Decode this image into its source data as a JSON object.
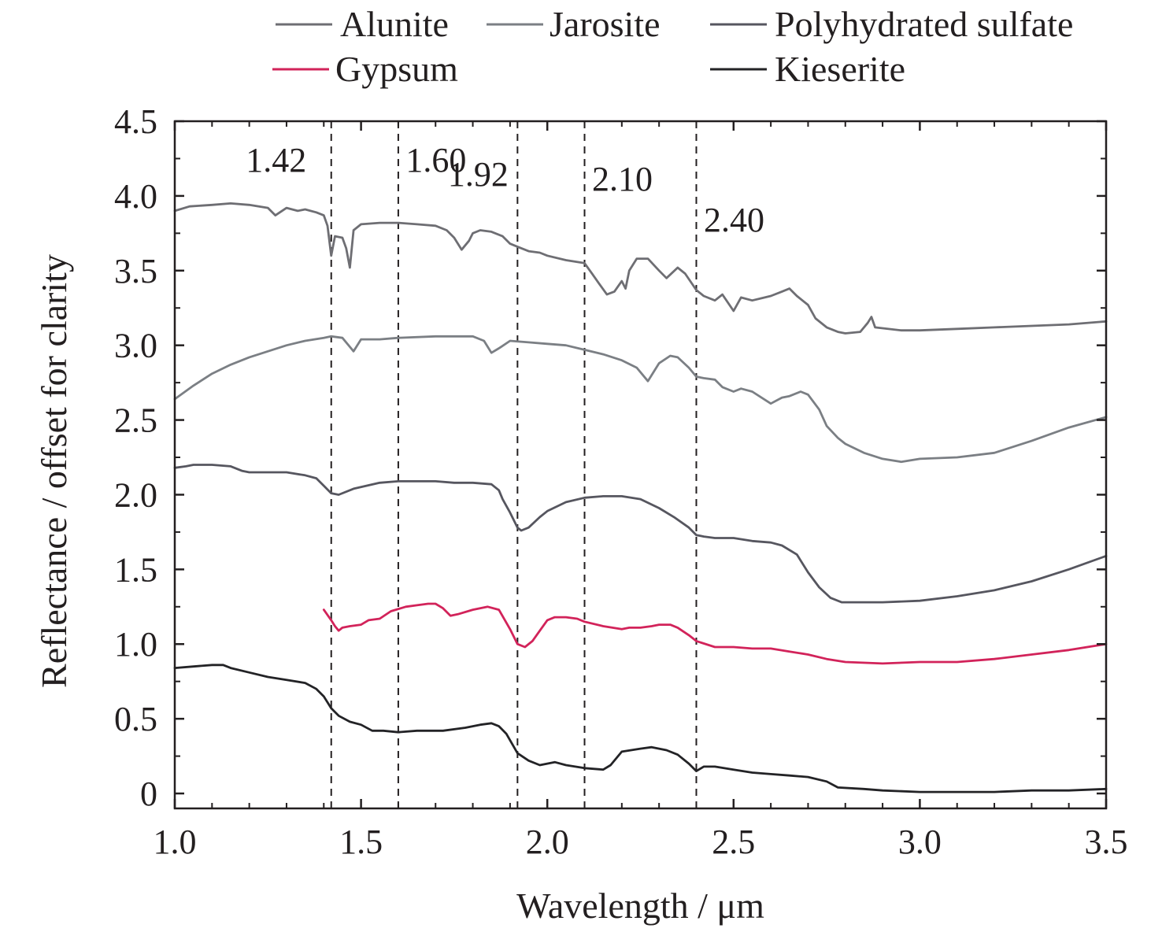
{
  "chart_data": {
    "type": "line",
    "title": "",
    "xlabel": "Wavelength / μm",
    "ylabel": "Reflectance / offset for clarity",
    "xlim": [
      1.0,
      3.5
    ],
    "ylim": [
      -0.1,
      4.5
    ],
    "xticks": [
      1.0,
      1.5,
      2.0,
      2.5,
      3.0,
      3.5
    ],
    "xtick_labels": [
      "1.0",
      "1.5",
      "2.0",
      "2.5",
      "3.0",
      "3.5"
    ],
    "yticks": [
      0,
      0.5,
      1.0,
      1.5,
      2.0,
      2.5,
      3.0,
      3.5,
      4.0,
      4.5
    ],
    "ytick_labels": [
      "0",
      "0.5",
      "1.0",
      "1.5",
      "2.0",
      "2.5",
      "3.0",
      "3.5",
      "4.0",
      "4.5"
    ],
    "grid": false,
    "legend_position": "top",
    "reference_lines": [
      {
        "x": 1.42,
        "label": "1.42"
      },
      {
        "x": 1.6,
        "label": "1.60"
      },
      {
        "x": 1.92,
        "label": "1.92"
      },
      {
        "x": 2.1,
        "label": "2.10"
      },
      {
        "x": 2.4,
        "label": "2.40"
      }
    ],
    "series": [
      {
        "name": "Alunite",
        "color": "#6e6e73",
        "x": [
          1.0,
          1.04,
          1.1,
          1.15,
          1.2,
          1.25,
          1.27,
          1.3,
          1.33,
          1.35,
          1.38,
          1.4,
          1.41,
          1.42,
          1.43,
          1.45,
          1.46,
          1.47,
          1.48,
          1.5,
          1.55,
          1.6,
          1.65,
          1.7,
          1.73,
          1.75,
          1.77,
          1.79,
          1.8,
          1.82,
          1.85,
          1.88,
          1.9,
          1.92,
          1.95,
          1.98,
          2.0,
          2.05,
          2.1,
          2.12,
          2.14,
          2.16,
          2.18,
          2.2,
          2.21,
          2.22,
          2.24,
          2.27,
          2.3,
          2.32,
          2.35,
          2.37,
          2.4,
          2.42,
          2.45,
          2.47,
          2.5,
          2.52,
          2.55,
          2.6,
          2.63,
          2.65,
          2.67,
          2.7,
          2.72,
          2.75,
          2.78,
          2.8,
          2.84,
          2.86,
          2.87,
          2.88,
          2.95,
          3.0,
          3.1,
          3.2,
          3.3,
          3.4,
          3.5
        ],
        "y": [
          3.9,
          3.93,
          3.94,
          3.95,
          3.94,
          3.92,
          3.87,
          3.92,
          3.9,
          3.91,
          3.89,
          3.87,
          3.8,
          3.6,
          3.73,
          3.72,
          3.65,
          3.52,
          3.77,
          3.81,
          3.82,
          3.82,
          3.81,
          3.8,
          3.77,
          3.72,
          3.64,
          3.7,
          3.75,
          3.77,
          3.76,
          3.73,
          3.68,
          3.66,
          3.63,
          3.62,
          3.6,
          3.57,
          3.55,
          3.48,
          3.41,
          3.34,
          3.36,
          3.43,
          3.38,
          3.5,
          3.58,
          3.58,
          3.5,
          3.45,
          3.52,
          3.48,
          3.37,
          3.33,
          3.3,
          3.34,
          3.23,
          3.32,
          3.3,
          3.33,
          3.36,
          3.38,
          3.33,
          3.27,
          3.18,
          3.12,
          3.09,
          3.08,
          3.09,
          3.15,
          3.19,
          3.12,
          3.1,
          3.1,
          3.11,
          3.12,
          3.13,
          3.14,
          3.16
        ]
      },
      {
        "name": "Jarosite",
        "color": "#7b7f84",
        "x": [
          1.0,
          1.05,
          1.1,
          1.15,
          1.2,
          1.25,
          1.3,
          1.35,
          1.4,
          1.42,
          1.45,
          1.47,
          1.48,
          1.5,
          1.55,
          1.6,
          1.7,
          1.8,
          1.83,
          1.85,
          1.87,
          1.9,
          1.95,
          2.0,
          2.05,
          2.1,
          2.15,
          2.2,
          2.24,
          2.27,
          2.28,
          2.3,
          2.33,
          2.35,
          2.38,
          2.4,
          2.42,
          2.45,
          2.47,
          2.5,
          2.52,
          2.55,
          2.6,
          2.63,
          2.65,
          2.68,
          2.7,
          2.73,
          2.75,
          2.78,
          2.8,
          2.85,
          2.9,
          2.95,
          3.0,
          3.1,
          3.2,
          3.3,
          3.4,
          3.5
        ],
        "y": [
          2.64,
          2.73,
          2.81,
          2.87,
          2.92,
          2.96,
          3.0,
          3.03,
          3.05,
          3.06,
          3.05,
          2.99,
          2.96,
          3.04,
          3.04,
          3.05,
          3.06,
          3.06,
          3.03,
          2.95,
          2.98,
          3.03,
          3.02,
          3.01,
          3.0,
          2.97,
          2.94,
          2.9,
          2.85,
          2.76,
          2.8,
          2.88,
          2.93,
          2.92,
          2.85,
          2.79,
          2.78,
          2.77,
          2.72,
          2.69,
          2.71,
          2.69,
          2.61,
          2.65,
          2.66,
          2.69,
          2.67,
          2.57,
          2.46,
          2.38,
          2.34,
          2.28,
          2.24,
          2.22,
          2.24,
          2.25,
          2.28,
          2.36,
          2.45,
          2.52
        ]
      },
      {
        "name": "Polyhydrated sulfate",
        "color": "#56565f",
        "x": [
          1.0,
          1.03,
          1.05,
          1.1,
          1.15,
          1.18,
          1.2,
          1.25,
          1.3,
          1.35,
          1.38,
          1.4,
          1.42,
          1.44,
          1.48,
          1.55,
          1.6,
          1.7,
          1.75,
          1.8,
          1.85,
          1.87,
          1.88,
          1.9,
          1.92,
          1.93,
          1.95,
          1.98,
          2.0,
          2.05,
          2.1,
          2.15,
          2.2,
          2.25,
          2.3,
          2.34,
          2.38,
          2.4,
          2.42,
          2.45,
          2.5,
          2.55,
          2.6,
          2.63,
          2.67,
          2.7,
          2.73,
          2.76,
          2.79,
          2.85,
          2.9,
          3.0,
          3.1,
          3.2,
          3.3,
          3.4,
          3.5
        ],
        "y": [
          2.18,
          2.19,
          2.2,
          2.2,
          2.19,
          2.16,
          2.15,
          2.15,
          2.15,
          2.13,
          2.11,
          2.06,
          2.01,
          2.0,
          2.04,
          2.08,
          2.09,
          2.09,
          2.08,
          2.08,
          2.07,
          2.03,
          1.97,
          1.88,
          1.78,
          1.76,
          1.78,
          1.85,
          1.89,
          1.95,
          1.98,
          1.99,
          1.99,
          1.97,
          1.91,
          1.85,
          1.78,
          1.73,
          1.72,
          1.71,
          1.71,
          1.69,
          1.68,
          1.66,
          1.6,
          1.48,
          1.38,
          1.31,
          1.28,
          1.28,
          1.28,
          1.29,
          1.32,
          1.36,
          1.42,
          1.5,
          1.59
        ]
      },
      {
        "name": "Gypsum",
        "color": "#d2235a",
        "x": [
          1.4,
          1.42,
          1.43,
          1.44,
          1.45,
          1.47,
          1.5,
          1.52,
          1.55,
          1.58,
          1.62,
          1.65,
          1.68,
          1.7,
          1.72,
          1.74,
          1.76,
          1.8,
          1.84,
          1.87,
          1.9,
          1.92,
          1.94,
          1.96,
          1.98,
          2.0,
          2.02,
          2.05,
          2.08,
          2.1,
          2.15,
          2.2,
          2.22,
          2.25,
          2.28,
          2.3,
          2.33,
          2.35,
          2.38,
          2.4,
          2.45,
          2.5,
          2.55,
          2.6,
          2.65,
          2.7,
          2.75,
          2.8,
          2.9,
          3.0,
          3.1,
          3.2,
          3.3,
          3.4,
          3.5
        ],
        "y": [
          1.23,
          1.16,
          1.12,
          1.09,
          1.11,
          1.12,
          1.13,
          1.16,
          1.17,
          1.22,
          1.25,
          1.26,
          1.27,
          1.27,
          1.24,
          1.19,
          1.2,
          1.23,
          1.25,
          1.23,
          1.1,
          1.0,
          0.98,
          1.02,
          1.09,
          1.16,
          1.18,
          1.18,
          1.17,
          1.15,
          1.12,
          1.1,
          1.11,
          1.11,
          1.12,
          1.13,
          1.13,
          1.11,
          1.06,
          1.02,
          0.98,
          0.98,
          0.97,
          0.97,
          0.95,
          0.93,
          0.9,
          0.88,
          0.87,
          0.88,
          0.88,
          0.9,
          0.93,
          0.96,
          1.0
        ]
      },
      {
        "name": "Kieserite",
        "color": "#232326",
        "x": [
          1.0,
          1.05,
          1.1,
          1.13,
          1.15,
          1.2,
          1.25,
          1.3,
          1.35,
          1.38,
          1.4,
          1.42,
          1.44,
          1.47,
          1.5,
          1.53,
          1.56,
          1.6,
          1.65,
          1.72,
          1.78,
          1.82,
          1.85,
          1.87,
          1.89,
          1.92,
          1.95,
          1.98,
          2.0,
          2.02,
          2.05,
          2.1,
          2.15,
          2.17,
          2.2,
          2.25,
          2.28,
          2.32,
          2.35,
          2.38,
          2.4,
          2.42,
          2.45,
          2.5,
          2.55,
          2.6,
          2.65,
          2.7,
          2.75,
          2.78,
          2.85,
          2.9,
          3.0,
          3.1,
          3.2,
          3.3,
          3.4,
          3.5
        ],
        "y": [
          0.84,
          0.85,
          0.86,
          0.86,
          0.84,
          0.81,
          0.78,
          0.76,
          0.74,
          0.7,
          0.65,
          0.57,
          0.52,
          0.48,
          0.46,
          0.42,
          0.42,
          0.41,
          0.42,
          0.42,
          0.44,
          0.46,
          0.47,
          0.45,
          0.4,
          0.27,
          0.22,
          0.19,
          0.2,
          0.21,
          0.19,
          0.17,
          0.16,
          0.19,
          0.28,
          0.3,
          0.31,
          0.29,
          0.26,
          0.2,
          0.15,
          0.18,
          0.18,
          0.16,
          0.14,
          0.13,
          0.12,
          0.11,
          0.08,
          0.04,
          0.03,
          0.02,
          0.01,
          0.01,
          0.01,
          0.02,
          0.02,
          0.03
        ]
      }
    ]
  }
}
